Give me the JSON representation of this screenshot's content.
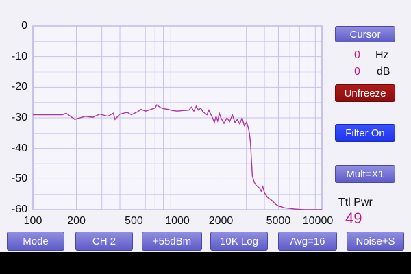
{
  "chart_data": {
    "type": "line",
    "x_scale": "log",
    "xlim": [
      100,
      10000
    ],
    "ylim": [
      -60,
      0
    ],
    "x_ticks": [
      "100",
      "200",
      "500",
      "1000",
      "2000",
      "5000",
      "10000"
    ],
    "x_tick_values": [
      100,
      200,
      500,
      1000,
      2000,
      5000,
      10000
    ],
    "y_ticks": [
      "0",
      "-10",
      "-20",
      "-30",
      "-40",
      "-50",
      "-60"
    ],
    "y_tick_values": [
      0,
      -10,
      -20,
      -30,
      -40,
      -50,
      -60
    ],
    "grid": true,
    "series_color": "#b0359e",
    "series": [
      {
        "x": [
          100,
          160,
          170,
          195,
          230,
          260,
          290,
          330,
          360,
          370,
          400,
          450,
          480,
          530,
          560,
          600,
          640,
          700,
          720,
          760,
          800,
          860,
          920,
          1000,
          1100,
          1200,
          1250,
          1300,
          1350,
          1400,
          1450,
          1500,
          1550,
          1600,
          1650,
          1700,
          1750,
          1800,
          1850,
          1900,
          1950,
          2000,
          2100,
          2200,
          2300,
          2400,
          2500,
          2600,
          2700,
          2800,
          2900,
          3000,
          3050,
          3100,
          3150,
          3200,
          3300,
          3400,
          3500,
          3600,
          3700,
          3800,
          3900,
          4000,
          4200,
          4500,
          4800,
          5000,
          5500,
          6000,
          6500,
          7000,
          7500,
          8000,
          9000,
          10000
        ],
        "y": [
          -29,
          -29,
          -28.5,
          -30.5,
          -29.5,
          -29.8,
          -28.8,
          -29.5,
          -28.5,
          -30.5,
          -28.8,
          -28.2,
          -29,
          -28,
          -27.2,
          -27.8,
          -27.4,
          -26.8,
          -25.8,
          -26.6,
          -27,
          -27.2,
          -27.6,
          -27.8,
          -27.6,
          -27.5,
          -26.5,
          -27.8,
          -26.2,
          -27.5,
          -26.8,
          -28,
          -28.5,
          -29,
          -27.5,
          -28.8,
          -30,
          -31.5,
          -29.5,
          -31,
          -28.5,
          -30,
          -31.8,
          -30,
          -31.2,
          -29,
          -31.5,
          -30.5,
          -32,
          -30,
          -32.5,
          -31.5,
          -32.2,
          -33.5,
          -35,
          -38,
          -49,
          -51,
          -52,
          -52.5,
          -53,
          -54,
          -52.5,
          -54.5,
          -56,
          -57,
          -58.3,
          -58.8,
          -59.4,
          -59.6,
          -59.8,
          -59.9,
          -60,
          -60,
          -60,
          -60
        ]
      }
    ]
  },
  "cursor": {
    "label": "Cursor",
    "freq_value": "0",
    "freq_unit": "Hz",
    "db_value": "0",
    "db_unit": "dB"
  },
  "side_buttons": {
    "unfreeze": "Unfreeze",
    "filter": "Filter On",
    "mult": "Mult=X1"
  },
  "total_power": {
    "label": "Ttl Pwr",
    "value": "49"
  },
  "bottom_buttons": {
    "mode": "Mode",
    "channel": "CH 2",
    "gain": "+55dBm",
    "span": "10K Log",
    "avg": "Avg=16",
    "noise": "Noise+S"
  },
  "colors": {
    "purple_button": "#6f6dd6",
    "blue_button": "#2a40ff",
    "red_button": "#a01414",
    "readout_value": "#c21e7a",
    "grid": "#c8bff0"
  }
}
